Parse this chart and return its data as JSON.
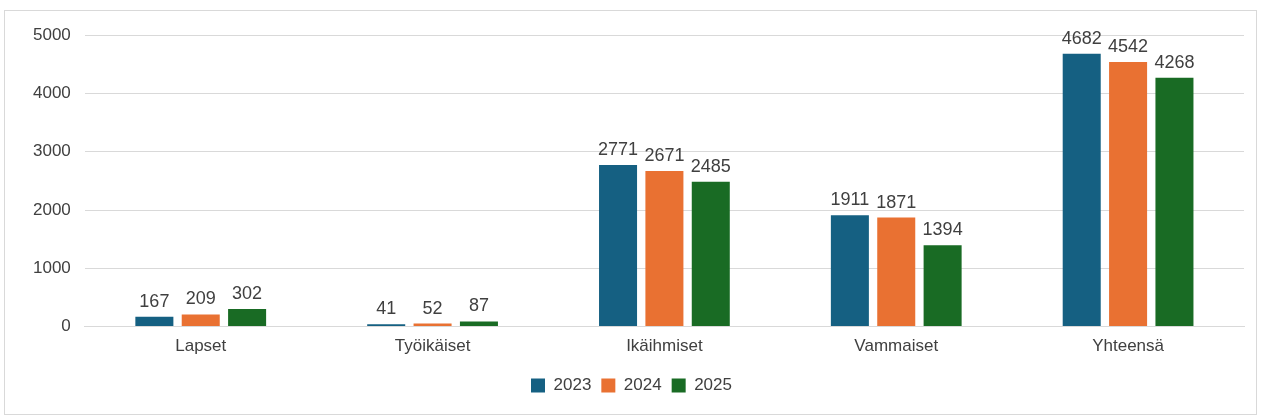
{
  "chart_data": {
    "type": "bar",
    "categories": [
      "Lapset",
      "Työikäiset",
      "Ikäihmiset",
      "Vammaiset",
      "Yhteensä"
    ],
    "series": [
      {
        "name": "2023",
        "color": "#156082",
        "values": [
          167,
          41,
          2771,
          1911,
          4682
        ]
      },
      {
        "name": "2024",
        "color": "#e97132",
        "values": [
          209,
          52,
          2671,
          1871,
          4542
        ]
      },
      {
        "name": "2025",
        "color": "#196b24",
        "values": [
          302,
          87,
          2485,
          1394,
          4268
        ]
      }
    ],
    "ylim": [
      0,
      5000
    ],
    "yticks": [
      0,
      1000,
      2000,
      3000,
      4000,
      5000
    ],
    "grid": "y",
    "legend": "bottom",
    "data_labels": true
  }
}
